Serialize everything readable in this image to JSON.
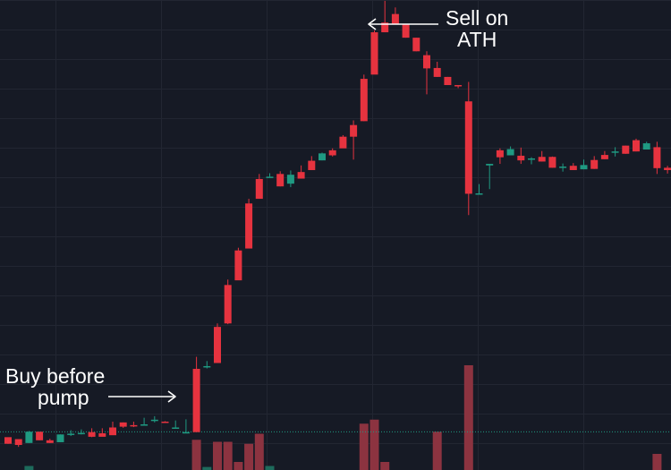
{
  "colors": {
    "background": "#161a25",
    "grid": "#222632",
    "up": "#1f9a82",
    "down": "#e6333f",
    "volume_up": "#1d6b5c",
    "volume_down": "#8c3340",
    "annotation": "#ffffff",
    "price_line": "#1f9a82"
  },
  "annotations": {
    "buy": {
      "line1": "Buy before",
      "line2": "pump"
    },
    "sell": {
      "line1": "Sell on",
      "line2": "ATH"
    }
  },
  "chart_data": {
    "type": "candlestick",
    "title": "",
    "xlabel": "",
    "ylabel": "",
    "ylim": [
      0,
      110
    ],
    "grid": true,
    "current_price_line": 3.5,
    "candles": [
      [
        2,
        1.5,
        0.3,
        0.3,
        1.5
      ],
      [
        1.5,
        1.5,
        0,
        -0.5,
        1.5
      ],
      [
        0.5,
        3.4,
        3.4,
        0.5,
        3.6
      ],
      [
        3.4,
        3.4,
        1.2,
        1.2,
        3.4
      ],
      [
        1.2,
        1.5,
        0.5,
        0.5,
        1.6
      ],
      [
        0.7,
        2.7,
        2.7,
        0.7,
        2.7
      ],
      [
        2.7,
        3.4,
        2.9,
        2.3,
        3.8
      ],
      [
        3.1,
        3.7,
        3.1,
        2.7,
        4
      ],
      [
        3.3,
        3.4,
        2.1,
        2,
        4.3
      ],
      [
        3,
        3.6,
        2.1,
        2.2,
        4.3
      ],
      [
        4.5,
        5.8,
        2.5,
        3,
        6
      ],
      [
        5.8,
        5.8,
        4.7,
        4.4,
        5.8
      ],
      [
        5.1,
        6,
        5,
        4.6,
        6
      ],
      [
        5.3,
        6.9,
        5.3,
        5.3,
        7
      ],
      [
        6.3,
        6.9,
        6.5,
        5.8,
        7.4
      ],
      [
        6,
        6.1,
        5.9,
        5.9,
        6.1
      ],
      [
        4.5,
        6.3,
        4.5,
        4.5,
        6.3
      ],
      [
        3.3,
        6.1,
        3.3,
        3.3,
        6.6
      ],
      [
        19.6,
        20.3,
        3.3,
        3.5,
        22.7
      ],
      [
        20.3,
        21.1,
        20.3,
        19.7,
        21.6
      ],
      [
        30.4,
        31.3,
        21.1,
        21.3,
        31.3
      ],
      [
        41.2,
        42.4,
        31.3,
        31.1,
        42.6
      ],
      [
        50.1,
        50.6,
        42.4,
        42.6,
        50.8
      ],
      [
        62.2,
        63.4,
        50.6,
        50.9,
        63.4
      ],
      [
        68.5,
        69.4,
        63.4,
        63.6,
        69.8
      ],
      [
        69,
        69.4,
        69.1,
        69.1,
        70
      ],
      [
        69.8,
        70.1,
        66.6,
        66.6,
        70.5
      ],
      [
        67.3,
        67.6,
        69.6,
        66.4,
        70.7
      ],
      [
        70.3,
        70.8,
        68.6,
        68.6,
        72
      ],
      [
        73.2,
        74.1,
        70.8,
        70.8,
        74.4
      ],
      [
        73.3,
        73.3,
        75.1,
        73.3,
        75.3
      ],
      [
        75.9,
        76.4,
        74.6,
        74.3,
        76.4
      ],
      [
        79.4,
        79.4,
        76.4,
        76.6,
        79.8
      ],
      [
        82.4,
        83.4,
        79.4,
        73.5,
        83.6
      ],
      [
        94.3,
        95.4,
        83.4,
        83.4,
        95.4
      ],
      [
        106.3,
        106.3,
        95.4,
        95.6,
        106.8
      ],
      [
        108.8,
        111,
        106.3,
        106.3,
        114.4
      ],
      [
        111,
        111,
        108.5,
        108.5,
        112.7
      ],
      [
        108.5,
        108.5,
        104.9,
        104.9,
        108.5
      ],
      [
        104.9,
        104.9,
        101.4,
        101.4,
        104.9
      ],
      [
        100.4,
        100.4,
        97,
        90.3,
        101.4
      ],
      [
        97.1,
        97.1,
        94.8,
        94.8,
        98.7
      ],
      [
        94.8,
        94.8,
        92.7,
        92.7,
        94.8
      ],
      [
        92.7,
        92.7,
        92.4,
        91.9,
        92.4
      ],
      [
        88.5,
        93.5,
        64.7,
        59.2,
        93.5
      ],
      [
        64.7,
        65.9,
        64.8,
        64.6,
        67.2
      ],
      [
        72,
        72,
        72.4,
        65.9,
        72.4
      ],
      [
        75.9,
        76,
        74.1,
        72.4,
        76.4
      ],
      [
        74.6,
        76.2,
        76.2,
        75.3,
        76.9
      ],
      [
        74.5,
        76,
        73.3,
        72.4,
        76.6
      ],
      [
        73.7,
        73.7,
        73.8,
        72.3,
        74.1
      ],
      [
        74.2,
        74.5,
        73,
        73,
        75.7
      ],
      [
        74.2,
        74.2,
        71.4,
        71.4,
        74.3
      ],
      [
        71.5,
        71.5,
        71.7,
        70.4,
        72.5
      ],
      [
        71.9,
        71.9,
        70.8,
        70.8,
        72.6
      ],
      [
        71,
        71,
        72.1,
        71,
        73.5
      ],
      [
        73.4,
        74.4,
        71.1,
        71.1,
        74.4
      ],
      [
        74.7,
        75.7,
        73.6,
        73.6,
        75.7
      ],
      [
        75.4,
        75.5,
        75.6,
        74.3,
        76.7
      ],
      [
        77.1,
        77.1,
        75,
        75,
        77.1
      ],
      [
        78.5,
        78.5,
        75.6,
        75.6,
        78.9
      ],
      [
        76.1,
        78.1,
        77.7,
        76.3,
        78.1
      ],
      [
        76.7,
        76.4,
        71.3,
        69.8,
        78.1
      ],
      [
        71.4,
        71.8,
        70.8,
        69.9,
        71.9
      ],
      [
        70.8,
        70.8,
        70.8,
        69.5,
        70.8
      ],
      [
        70.8,
        71,
        71.6,
        69.5,
        72.6
      ],
      [
        72.1,
        72.1,
        67.8,
        67.8,
        72.1
      ],
      [
        67.7,
        68.6,
        67.9,
        67.2,
        68.9
      ],
      [
        70.3,
        70.1,
        69.5,
        68.5,
        72.7
      ]
    ],
    "volume": [
      0,
      0,
      2,
      0,
      0,
      0,
      0,
      0,
      0,
      0,
      0,
      0,
      0,
      0,
      0,
      0,
      0,
      0,
      15,
      1.5,
      14,
      14,
      4,
      13,
      18,
      2,
      0,
      0,
      0,
      0,
      0,
      0,
      0,
      0,
      23,
      25,
      4,
      0,
      0,
      0,
      0,
      19,
      0,
      0,
      52,
      0,
      0,
      0,
      0,
      0,
      0,
      0,
      0,
      0,
      0,
      0,
      0,
      0,
      0,
      0,
      0,
      0,
      8,
      0,
      0,
      0,
      0,
      0,
      0
    ],
    "volume_ylim": [
      0,
      60
    ]
  }
}
